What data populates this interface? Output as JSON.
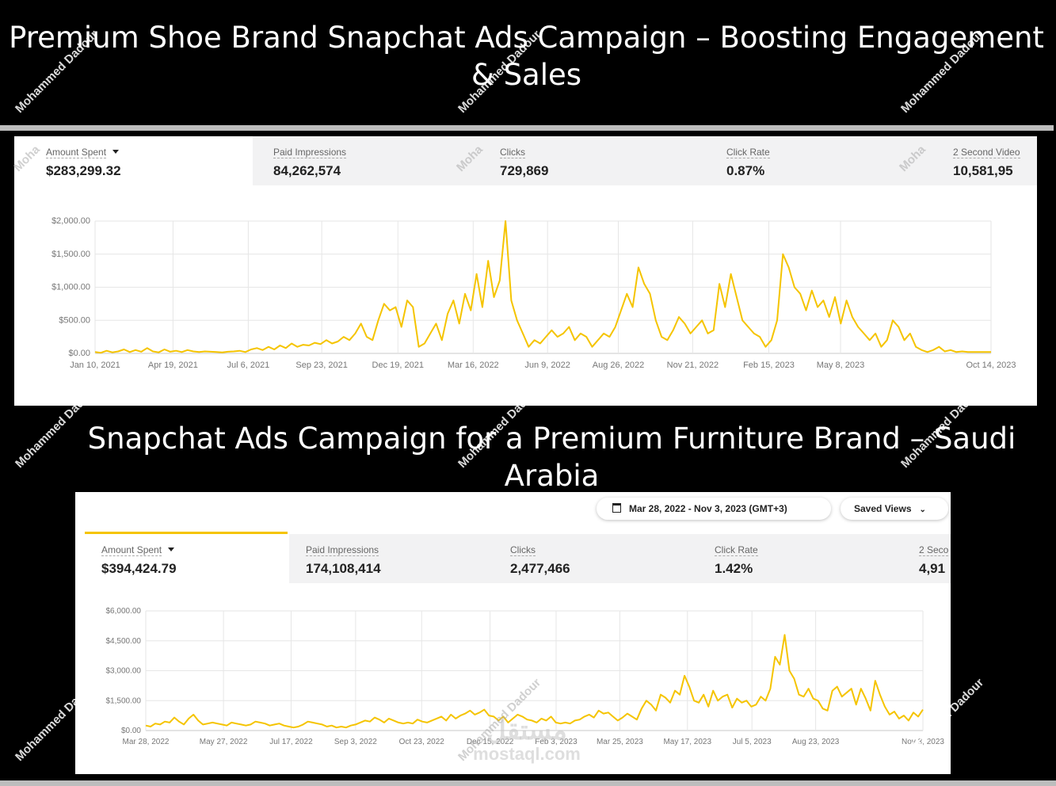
{
  "titles": {
    "top": "Premium Shoe Brand Snapchat Ads Campaign – Boosting Engagement & Sales",
    "bottom": "Snapchat Ads Campaign for a Premium Furniture Brand – Saudi Arabia"
  },
  "watermark": "Mohammed Dadour",
  "watermark_short": "Moha",
  "logo": {
    "arabic": "مستقل",
    "text": "mostaql.com"
  },
  "panel1": {
    "metrics": [
      {
        "label": "Amount Spent",
        "value": "$283,299.32"
      },
      {
        "label": "Paid Impressions",
        "value": "84,262,574"
      },
      {
        "label": "Clicks",
        "value": "729,869"
      },
      {
        "label": "Click Rate",
        "value": "0.87%"
      },
      {
        "label": "2 Second Video",
        "value": "10,581,95"
      }
    ]
  },
  "panel2": {
    "date_range": "Mar 28, 2022 - Nov 3, 2023 (GMT+3)",
    "saved_views": "Saved Views",
    "metrics": [
      {
        "label": "Amount Spent",
        "value": "$394,424.79"
      },
      {
        "label": "Paid Impressions",
        "value": "174,108,414"
      },
      {
        "label": "Clicks",
        "value": "2,477,466"
      },
      {
        "label": "Click Rate",
        "value": "1.42%"
      },
      {
        "label": "2 Seco",
        "value": "4,91"
      }
    ]
  },
  "chart_data": [
    {
      "type": "line",
      "title": "",
      "xlabel": "",
      "ylabel": "",
      "color": "#f5c400",
      "ylim": [
        0,
        2000
      ],
      "yticks": [
        0,
        500,
        1000,
        1500,
        2000
      ],
      "ytick_labels": [
        "$0.00",
        "$500.00",
        "$1,000.00",
        "$1,500.00",
        "$2,000.00"
      ],
      "xtick_labels": [
        "Jan 10, 2021",
        "Apr 19, 2021",
        "Jul 6, 2021",
        "Sep 23, 2021",
        "Dec 19, 2021",
        "Mar 16, 2022",
        "Jun 9, 2022",
        "Aug 26, 2022",
        "Nov 21, 2022",
        "Feb 15, 2023",
        "May 8, 2023",
        "Oct 14, 2023"
      ],
      "xtick_fracs": [
        0.0,
        0.087,
        0.171,
        0.253,
        0.338,
        0.422,
        0.505,
        0.584,
        0.667,
        0.752,
        0.832,
        1.0
      ],
      "series": [
        {
          "values": [
            20,
            10,
            40,
            15,
            30,
            60,
            20,
            50,
            25,
            80,
            30,
            15,
            60,
            25,
            40,
            20,
            50,
            30,
            20,
            30,
            25,
            20,
            15,
            25,
            30,
            40,
            20,
            60,
            80,
            50,
            100,
            60,
            120,
            80,
            150,
            100,
            130,
            120,
            160,
            140,
            200,
            150,
            180,
            250,
            200,
            300,
            450,
            250,
            200,
            500,
            750,
            650,
            700,
            400,
            800,
            700,
            100,
            150,
            300,
            450,
            200,
            600,
            800,
            450,
            900,
            650,
            1200,
            700,
            1400,
            850,
            1100,
            2000,
            800,
            500,
            300,
            100,
            200,
            150,
            250,
            350,
            250,
            300,
            400,
            200,
            300,
            250,
            100,
            200,
            300,
            250,
            400,
            650,
            900,
            700,
            1300,
            1050,
            900,
            500,
            250,
            200,
            350,
            550,
            450,
            300,
            400,
            500,
            300,
            350,
            1050,
            700,
            1200,
            850,
            500,
            400,
            300,
            250,
            100,
            200,
            500,
            1500,
            1300,
            1000,
            900,
            650,
            950,
            700,
            800,
            550,
            850,
            450,
            800,
            550,
            400,
            300,
            200,
            300,
            100,
            200,
            500,
            400,
            200,
            300,
            100,
            50,
            20,
            50,
            100,
            30,
            50,
            20,
            30,
            20,
            20,
            20,
            20,
            20
          ]
        }
      ]
    },
    {
      "type": "line",
      "title": "",
      "xlabel": "",
      "ylabel": "",
      "color": "#f5c400",
      "ylim": [
        0,
        6000
      ],
      "yticks": [
        0,
        1500,
        3000,
        4500,
        6000
      ],
      "ytick_labels": [
        "$0.00",
        "$1,500.00",
        "$3,000.00",
        "$4,500.00",
        "$6,000.00"
      ],
      "xtick_labels": [
        "Mar 28, 2022",
        "May 27, 2022",
        "Jul 17, 2022",
        "Sep 3, 2022",
        "Oct 23, 2022",
        "Dec 15, 2022",
        "Feb 3, 2023",
        "Mar 25, 2023",
        "May 17, 2023",
        "Jul 5, 2023",
        "Aug 23, 2023",
        "Nov 3, 2023"
      ],
      "xtick_fracs": [
        0.0,
        0.1,
        0.187,
        0.27,
        0.355,
        0.443,
        0.528,
        0.61,
        0.697,
        0.78,
        0.862,
        1.0
      ],
      "series": [
        {
          "values": [
            250,
            200,
            350,
            300,
            450,
            400,
            650,
            450,
            300,
            600,
            800,
            500,
            300,
            350,
            400,
            350,
            300,
            250,
            400,
            350,
            300,
            250,
            300,
            450,
            400,
            350,
            250,
            300,
            350,
            250,
            200,
            150,
            200,
            300,
            450,
            400,
            350,
            300,
            200,
            250,
            150,
            200,
            150,
            250,
            300,
            400,
            500,
            450,
            650,
            550,
            400,
            600,
            500,
            400,
            350,
            400,
            350,
            550,
            450,
            400,
            500,
            600,
            700,
            500,
            800,
            600,
            750,
            850,
            1000,
            800,
            900,
            1050,
            750,
            700,
            500,
            700,
            400,
            600,
            800,
            700,
            550,
            500,
            400,
            600,
            500,
            700,
            400,
            350,
            400,
            350,
            500,
            550,
            700,
            800,
            650,
            1000,
            850,
            900,
            700,
            500,
            650,
            850,
            700,
            550,
            1100,
            1500,
            1300,
            1000,
            1800,
            1650,
            1400,
            2000,
            1800,
            2750,
            2200,
            1500,
            1400,
            1800,
            1200,
            2000,
            1500,
            1700,
            1800,
            1150,
            1600,
            1400,
            1500,
            1200,
            1300,
            1700,
            1500,
            2100,
            3700,
            3300,
            4800,
            3000,
            2600,
            1800,
            1700,
            2100,
            1600,
            1500,
            1100,
            1000,
            2000,
            2200,
            1700,
            1900,
            2100,
            1300,
            2100,
            1600,
            1000,
            2500,
            1800,
            1200,
            800,
            950,
            600,
            750,
            500,
            900,
            700,
            1050
          ]
        }
      ]
    }
  ]
}
